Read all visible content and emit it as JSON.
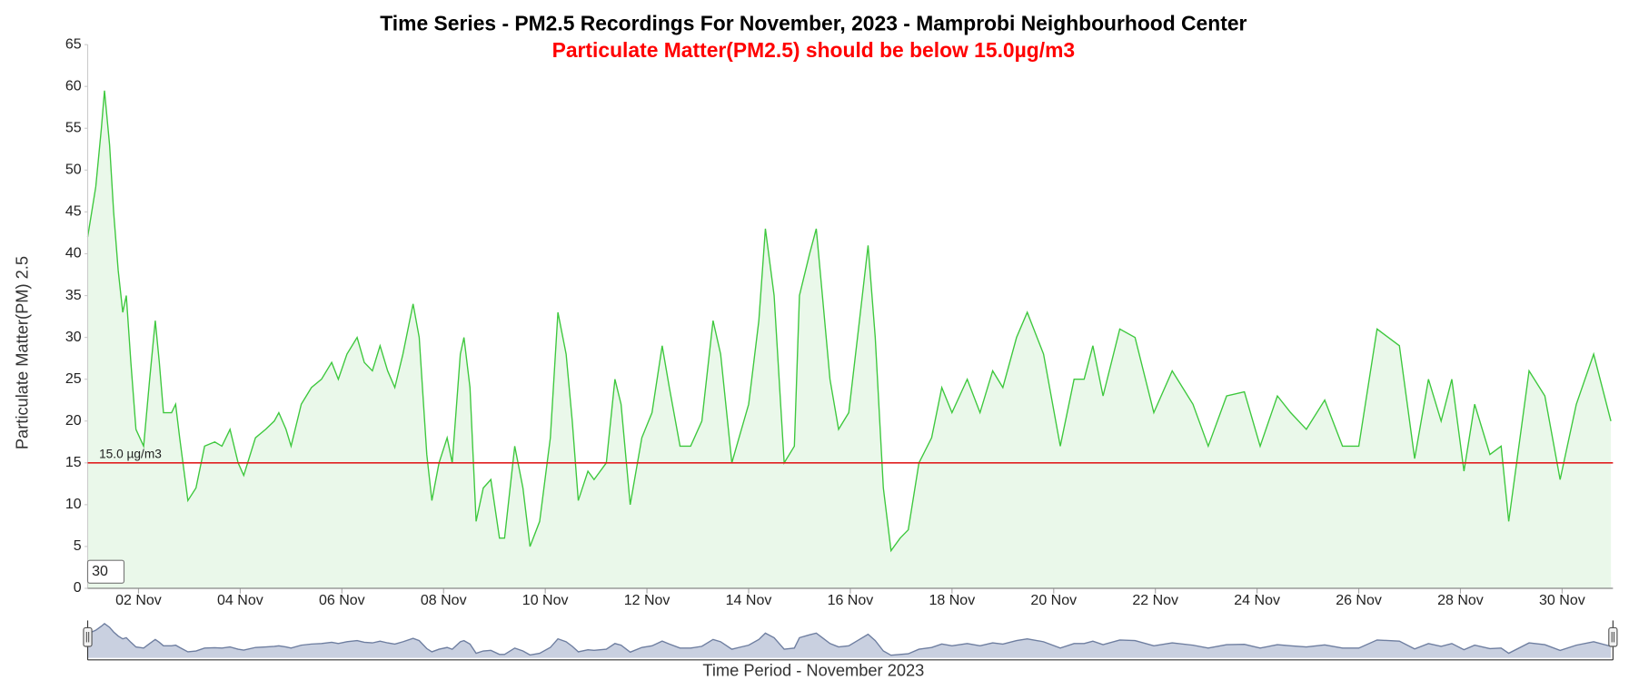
{
  "chart_data": {
    "type": "area",
    "title": "Time Series - PM2.5 Recordings For November, 2023 - Mamprobi Neighbourhood Center",
    "subtitle": "Particulate Matter(PM2.5) should be below 15.0µg/m3",
    "y_label": "Particulate Matter(PM) 2.5",
    "x_label": "Time Period - November 2023",
    "zoom_input": "30",
    "threshold": {
      "value": 15,
      "label": "15.0 µg/m3",
      "color": "#e02020"
    },
    "x": [
      1.0,
      1.08,
      1.16,
      1.27,
      1.33,
      1.43,
      1.51,
      1.6,
      1.69,
      1.76,
      1.85,
      1.95,
      2.1,
      2.22,
      2.33,
      2.41,
      2.49,
      2.65,
      2.73,
      2.81,
      2.97,
      3.13,
      3.3,
      3.5,
      3.64,
      3.8,
      3.96,
      4.07,
      4.3,
      4.5,
      4.67,
      4.76,
      4.9,
      5.0,
      5.2,
      5.4,
      5.6,
      5.8,
      5.93,
      6.1,
      6.3,
      6.44,
      6.6,
      6.75,
      6.9,
      7.04,
      7.2,
      7.4,
      7.52,
      7.67,
      7.77,
      7.91,
      8.07,
      8.17,
      8.33,
      8.4,
      8.52,
      8.64,
      8.78,
      8.93,
      9.1,
      9.2,
      9.4,
      9.56,
      9.7,
      9.89,
      10.1,
      10.25,
      10.41,
      10.53,
      10.65,
      10.84,
      10.96,
      11.2,
      11.37,
      11.49,
      11.67,
      11.9,
      12.1,
      12.3,
      12.44,
      12.65,
      12.86,
      13.08,
      13.3,
      13.45,
      13.67,
      13.81,
      14.0,
      14.2,
      14.33,
      14.5,
      14.7,
      14.9,
      15.0,
      15.2,
      15.33,
      15.45,
      15.6,
      15.77,
      15.97,
      16.18,
      16.35,
      16.49,
      16.65,
      16.8,
      16.98,
      17.14,
      17.35,
      17.6,
      17.8,
      18.0,
      18.3,
      18.55,
      18.8,
      19.0,
      19.27,
      19.48,
      19.8,
      20.13,
      20.4,
      20.6,
      20.77,
      20.97,
      21.3,
      21.6,
      21.97,
      22.33,
      22.74,
      23.04,
      23.4,
      23.75,
      24.06,
      24.4,
      24.66,
      24.97,
      25.33,
      25.68,
      26.0,
      26.36,
      26.8,
      27.1,
      27.37,
      27.62,
      27.83,
      28.07,
      28.28,
      28.58,
      28.8,
      28.95,
      29.35,
      29.66,
      29.96,
      30.28,
      30.62,
      30.96
    ],
    "series": [
      {
        "name": "PM2.5",
        "color": "#3ec83e",
        "fill": "#eaf8ea",
        "values": [
          42,
          45,
          48,
          55,
          59.5,
          53,
          45,
          38,
          33,
          35,
          27,
          19,
          17,
          25,
          32,
          27,
          21,
          21,
          22,
          18,
          10.5,
          12,
          17,
          17.5,
          17,
          19,
          15,
          13.5,
          18,
          19,
          20,
          21,
          19,
          17,
          22,
          24,
          25,
          27,
          25,
          28,
          30,
          27,
          26,
          29,
          26,
          24,
          28,
          34,
          30,
          16,
          10.5,
          15,
          18,
          15,
          28,
          30,
          24,
          8,
          12,
          13,
          6,
          6,
          17,
          12,
          5,
          8,
          18,
          33,
          28,
          20,
          10.5,
          14,
          13,
          15,
          25,
          22,
          10,
          18,
          21,
          29,
          24,
          17,
          17,
          20,
          32,
          28,
          15,
          18,
          22,
          32,
          43,
          35,
          15,
          17,
          35,
          40,
          43,
          35,
          25,
          19,
          21,
          32,
          41,
          30,
          12,
          4.5,
          6,
          7,
          15,
          18,
          24,
          21,
          25,
          21,
          26,
          24,
          30,
          33,
          28,
          17,
          25,
          25,
          29,
          23,
          31,
          30,
          21,
          26,
          22,
          17,
          23,
          23.5,
          17,
          23,
          21,
          19,
          22.5,
          17,
          17,
          31,
          29,
          15.5,
          25,
          20,
          25,
          14,
          22,
          16,
          17,
          8,
          26,
          23,
          13,
          22,
          28,
          20
        ]
      }
    ],
    "xlim": [
      1,
      31
    ],
    "xticks": [
      {
        "value": 2,
        "label": "02 Nov"
      },
      {
        "value": 4,
        "label": "04 Nov"
      },
      {
        "value": 6,
        "label": "06 Nov"
      },
      {
        "value": 8,
        "label": "08 Nov"
      },
      {
        "value": 10,
        "label": "10 Nov"
      },
      {
        "value": 12,
        "label": "12 Nov"
      },
      {
        "value": 14,
        "label": "14 Nov"
      },
      {
        "value": 16,
        "label": "16 Nov"
      },
      {
        "value": 18,
        "label": "18 Nov"
      },
      {
        "value": 20,
        "label": "20 Nov"
      },
      {
        "value": 22,
        "label": "22 Nov"
      },
      {
        "value": 24,
        "label": "24 Nov"
      },
      {
        "value": 26,
        "label": "26 Nov"
      },
      {
        "value": 28,
        "label": "28 Nov"
      },
      {
        "value": 30,
        "label": "30 Nov"
      }
    ],
    "ylim": [
      0,
      65
    ],
    "yticks": [
      0,
      5,
      10,
      15,
      20,
      25,
      30,
      35,
      40,
      45,
      50,
      55,
      60,
      65
    ],
    "grid": false
  }
}
